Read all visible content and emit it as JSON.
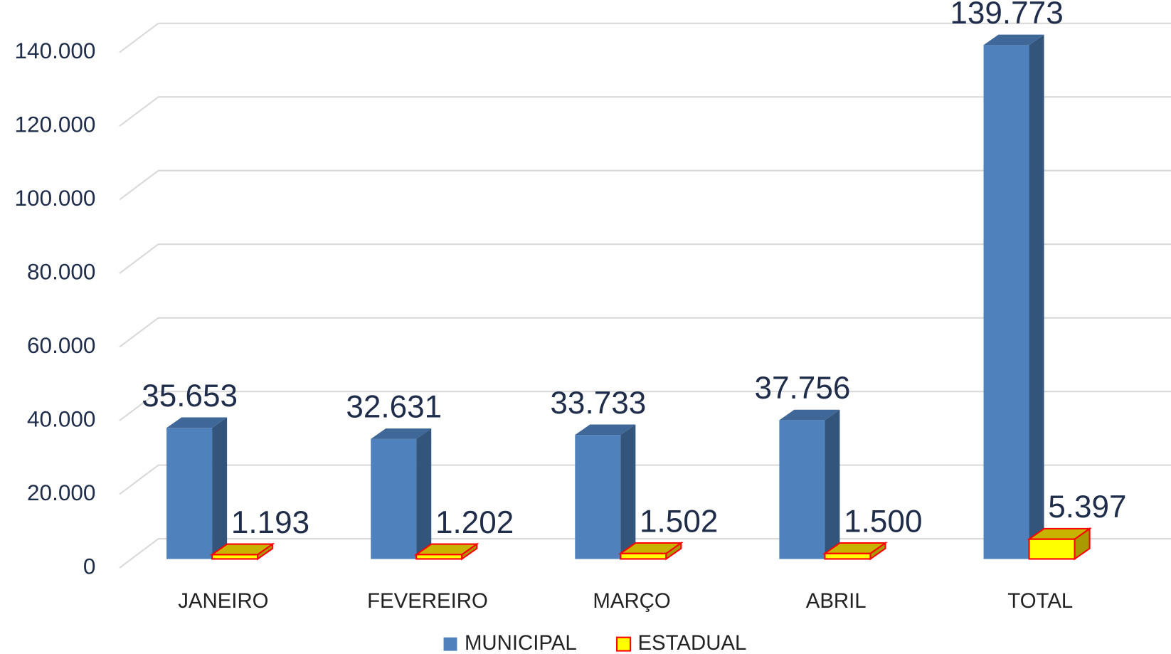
{
  "chart_data": {
    "type": "bar3d",
    "categories": [
      "JANEIRO",
      "FEVEREIRO",
      "MARÇO",
      "ABRIL",
      "TOTAL"
    ],
    "series": [
      {
        "name": "MUNICIPAL",
        "color": "#4f81bd",
        "values": [
          35653,
          32631,
          33733,
          37756,
          139773
        ],
        "value_labels": [
          "35.653",
          "32.631",
          "33.733",
          "37.756",
          "139.773"
        ]
      },
      {
        "name": "ESTADUAL",
        "color": "#ffff00",
        "values": [
          1193,
          1202,
          1502,
          1500,
          5397
        ],
        "value_labels": [
          "1.193",
          "1.202",
          "1.502",
          "1.500",
          "5.397"
        ]
      }
    ],
    "ylim": [
      0,
      140000
    ],
    "yticks": [
      0,
      {
        "value": 20000,
        "label": "20.000"
      },
      {
        "value": 40000,
        "label": "40.000"
      },
      {
        "value": 60000,
        "label": "60.000"
      },
      {
        "value": 80000,
        "label": "80.000"
      },
      {
        "value": 100000,
        "label": "100.000"
      },
      {
        "value": 120000,
        "label": "120.000"
      },
      {
        "value": 140000,
        "label": "140.000"
      }
    ],
    "grid": true,
    "legend": "bottom"
  }
}
